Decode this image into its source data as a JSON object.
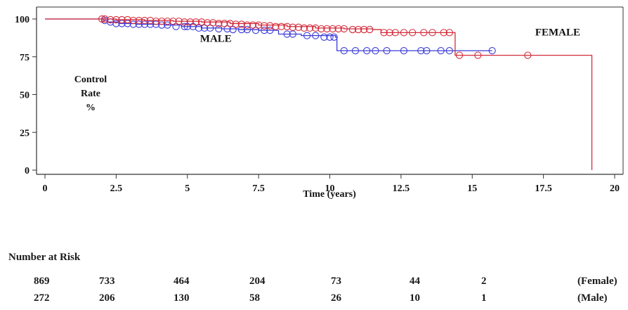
{
  "chart_data": {
    "type": "line",
    "subtype": "kaplan-meier",
    "xlabel": "Time (years)",
    "ylabel_lines": [
      "Control",
      "Rate",
      "%"
    ],
    "xlim": [
      0,
      20
    ],
    "ylim": [
      0,
      100
    ],
    "x_ticks": [
      0,
      2.5,
      5,
      7.5,
      10,
      12.5,
      15,
      17.5,
      20
    ],
    "x_tick_labels": [
      "0",
      "2.5",
      "5",
      "7.5",
      "10",
      "12.5",
      "15",
      "17.5",
      "20"
    ],
    "y_ticks": [
      0,
      25,
      50,
      75,
      100
    ],
    "y_tick_labels": [
      "0",
      "25",
      "50",
      "75",
      "100"
    ],
    "grid": false,
    "series": [
      {
        "name": "MALE",
        "color": "#3b3bd9",
        "steps": [
          [
            0,
            100
          ],
          [
            1.5,
            100
          ],
          [
            2.05,
            99
          ],
          [
            2.2,
            98
          ],
          [
            2.6,
            97
          ],
          [
            3.2,
            96.5
          ],
          [
            4.2,
            96
          ],
          [
            4.8,
            95
          ],
          [
            5.5,
            94
          ],
          [
            6.2,
            93.5
          ],
          [
            6.8,
            93
          ],
          [
            7.5,
            92.5
          ],
          [
            8.2,
            90
          ],
          [
            9.0,
            89
          ],
          [
            10.2,
            88
          ],
          [
            10.25,
            79
          ],
          [
            15.7,
            79
          ]
        ],
        "censored": [
          [
            2.1,
            99
          ],
          [
            2.3,
            98
          ],
          [
            2.5,
            97
          ],
          [
            2.7,
            97
          ],
          [
            2.9,
            97
          ],
          [
            3.1,
            96.5
          ],
          [
            3.3,
            96.5
          ],
          [
            3.5,
            96.5
          ],
          [
            3.7,
            96.5
          ],
          [
            3.9,
            96.5
          ],
          [
            4.1,
            96
          ],
          [
            4.3,
            96
          ],
          [
            4.6,
            95
          ],
          [
            4.9,
            95
          ],
          [
            5.0,
            95
          ],
          [
            5.2,
            95
          ],
          [
            5.4,
            94
          ],
          [
            5.6,
            94
          ],
          [
            5.8,
            94
          ],
          [
            6.1,
            93.5
          ],
          [
            6.4,
            93.5
          ],
          [
            6.6,
            93
          ],
          [
            6.9,
            93
          ],
          [
            7.1,
            93
          ],
          [
            7.4,
            92.5
          ],
          [
            7.7,
            92.5
          ],
          [
            7.9,
            92.5
          ],
          [
            8.5,
            90
          ],
          [
            8.7,
            90
          ],
          [
            9.2,
            89
          ],
          [
            9.5,
            89
          ],
          [
            9.8,
            88
          ],
          [
            10.0,
            88
          ],
          [
            10.15,
            88
          ],
          [
            10.5,
            79
          ],
          [
            10.9,
            79
          ],
          [
            11.3,
            79
          ],
          [
            11.6,
            79
          ],
          [
            12.0,
            79
          ],
          [
            12.6,
            79
          ],
          [
            13.2,
            79
          ],
          [
            13.4,
            79
          ],
          [
            13.9,
            79
          ],
          [
            14.2,
            79
          ],
          [
            15.7,
            79
          ]
        ]
      },
      {
        "name": "FEMALE",
        "color": "#d42b3a",
        "steps": [
          [
            0,
            100
          ],
          [
            2.0,
            100
          ],
          [
            2.5,
            99.5
          ],
          [
            3.5,
            99
          ],
          [
            4.5,
            98.5
          ],
          [
            5.5,
            98
          ],
          [
            6.5,
            97
          ],
          [
            7.5,
            96
          ],
          [
            8.5,
            95
          ],
          [
            9.5,
            94
          ],
          [
            10.5,
            93.5
          ],
          [
            11.5,
            93
          ],
          [
            11.8,
            91
          ],
          [
            14.35,
            91
          ],
          [
            14.4,
            76
          ],
          [
            19.2,
            76
          ],
          [
            19.2,
            0
          ]
        ],
        "censored": [
          [
            2.0,
            100
          ],
          [
            2.1,
            100
          ],
          [
            2.3,
            99.5
          ],
          [
            2.5,
            99.5
          ],
          [
            2.7,
            99.5
          ],
          [
            2.9,
            99.5
          ],
          [
            3.1,
            99
          ],
          [
            3.3,
            99
          ],
          [
            3.5,
            99
          ],
          [
            3.7,
            99
          ],
          [
            3.9,
            98.5
          ],
          [
            4.1,
            98.5
          ],
          [
            4.3,
            98.5
          ],
          [
            4.5,
            98.5
          ],
          [
            4.7,
            98.5
          ],
          [
            4.9,
            98
          ],
          [
            5.1,
            98
          ],
          [
            5.3,
            98
          ],
          [
            5.5,
            98
          ],
          [
            5.7,
            97.5
          ],
          [
            5.9,
            97.5
          ],
          [
            6.1,
            97
          ],
          [
            6.3,
            97
          ],
          [
            6.5,
            97
          ],
          [
            6.7,
            96.5
          ],
          [
            6.9,
            96.5
          ],
          [
            7.1,
            96
          ],
          [
            7.3,
            96
          ],
          [
            7.5,
            96
          ],
          [
            7.7,
            95.5
          ],
          [
            7.9,
            95.5
          ],
          [
            8.1,
            95
          ],
          [
            8.3,
            95
          ],
          [
            8.5,
            95
          ],
          [
            8.7,
            94.5
          ],
          [
            8.9,
            94.5
          ],
          [
            9.1,
            94
          ],
          [
            9.3,
            94
          ],
          [
            9.5,
            94
          ],
          [
            9.7,
            93.5
          ],
          [
            9.9,
            93.5
          ],
          [
            10.1,
            93.5
          ],
          [
            10.3,
            93.5
          ],
          [
            10.5,
            93.5
          ],
          [
            10.8,
            93
          ],
          [
            11.0,
            93
          ],
          [
            11.2,
            93
          ],
          [
            11.4,
            93
          ],
          [
            11.9,
            91
          ],
          [
            12.1,
            91
          ],
          [
            12.3,
            91
          ],
          [
            12.6,
            91
          ],
          [
            12.9,
            91
          ],
          [
            13.3,
            91
          ],
          [
            13.6,
            91
          ],
          [
            14.0,
            91
          ],
          [
            14.2,
            91
          ],
          [
            14.55,
            76
          ],
          [
            15.2,
            76
          ],
          [
            16.95,
            76
          ]
        ]
      }
    ],
    "annotations": [
      {
        "text": "MALE",
        "x": 6.0,
        "y": 85
      },
      {
        "text": "FEMALE",
        "x": 18.0,
        "y": 89
      }
    ]
  },
  "risk_table": {
    "title": "Number at Risk",
    "rows": [
      {
        "label": "(Female)",
        "values": [
          "869",
          "733",
          "464",
          "204",
          "73",
          "44",
          "2"
        ]
      },
      {
        "label": "(Male)",
        "values": [
          "272",
          "206",
          "130",
          "58",
          "26",
          "10",
          "1"
        ]
      }
    ]
  }
}
